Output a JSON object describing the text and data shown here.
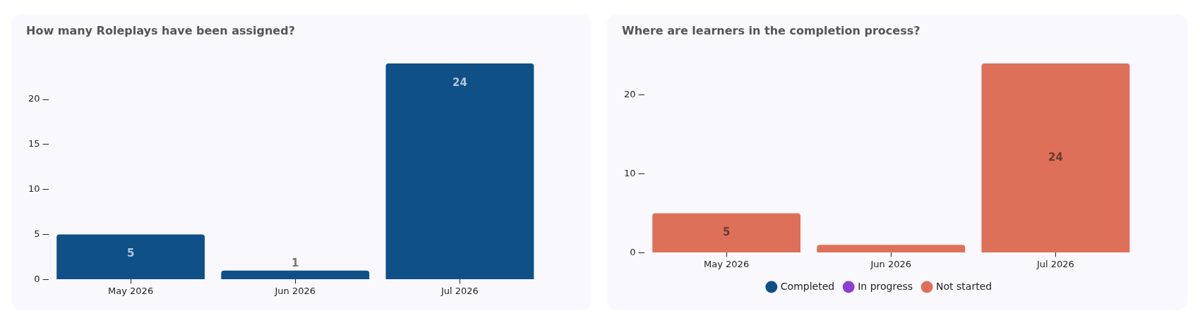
{
  "chart_data": [
    {
      "type": "bar",
      "title": "How many Roleplays have been assigned?",
      "categories": [
        "May 2026",
        "Jun 2026",
        "Jul 2026"
      ],
      "values": [
        5,
        1,
        24
      ],
      "color": "#0f5087",
      "ylim": [
        0,
        24
      ],
      "yticks": [
        0,
        5,
        10,
        15,
        20
      ],
      "data_labels": true,
      "grid": false,
      "legend": false
    },
    {
      "type": "bar",
      "title": "Where are learners in the completion process?",
      "categories": [
        "May 2026",
        "Jun 2026",
        "Jul 2026"
      ],
      "stacked": true,
      "series": [
        {
          "name": "Completed",
          "color": "#0f5087",
          "values": [
            0,
            0,
            0
          ]
        },
        {
          "name": "In progress",
          "color": "#8a3fd0",
          "values": [
            0,
            0,
            0
          ]
        },
        {
          "name": "Not started",
          "color": "#de7059",
          "values": [
            5,
            1,
            24
          ],
          "value_labels": [
            "5",
            null,
            "24"
          ]
        }
      ],
      "ylim": [
        0,
        24
      ],
      "yticks": [
        0,
        10,
        20
      ],
      "grid": false,
      "legend": "bottom"
    }
  ]
}
